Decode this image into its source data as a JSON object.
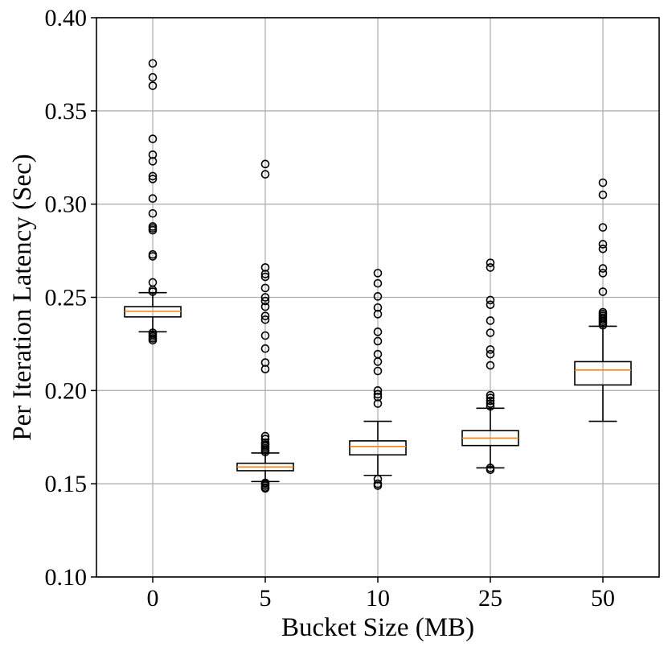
{
  "chart_data": {
    "type": "boxplot",
    "xlabel": "Bucket Size (MB)",
    "ylabel": "Per Iteration Latency (Sec)",
    "ylim": [
      0.1,
      0.4
    ],
    "yticks": [
      "0.10",
      "0.15",
      "0.20",
      "0.25",
      "0.30",
      "0.35",
      "0.40"
    ],
    "categories": [
      "0",
      "5",
      "10",
      "25",
      "50"
    ],
    "grid": true,
    "colors": {
      "box": "#000000",
      "median": "#ff7f0e",
      "grid": "#b0b0b0",
      "outlier": "#000000"
    },
    "boxes": [
      {
        "category": "0",
        "whisker_low": 0.2315,
        "q1": 0.2395,
        "median": 0.2425,
        "q3": 0.245,
        "whisker_high": 0.2525,
        "outliers": [
          0.227,
          0.228,
          0.229,
          0.23,
          0.231,
          0.253,
          0.254,
          0.258,
          0.272,
          0.273,
          0.286,
          0.287,
          0.288,
          0.295,
          0.303,
          0.3135,
          0.315,
          0.323,
          0.3265,
          0.335,
          0.3635,
          0.368,
          0.3755
        ]
      },
      {
        "category": "5",
        "whisker_low": 0.1512,
        "q1": 0.157,
        "median": 0.159,
        "q3": 0.161,
        "whisker_high": 0.1665,
        "outliers": [
          0.1475,
          0.148,
          0.149,
          0.15,
          0.1505,
          0.167,
          0.168,
          0.169,
          0.17,
          0.171,
          0.172,
          0.174,
          0.1755,
          0.2115,
          0.215,
          0.2225,
          0.2295,
          0.238,
          0.24,
          0.245,
          0.248,
          0.25,
          0.255,
          0.261,
          0.2625,
          0.266,
          0.316,
          0.3215
        ]
      },
      {
        "category": "10",
        "whisker_low": 0.1545,
        "q1": 0.1655,
        "median": 0.17,
        "q3": 0.173,
        "whisker_high": 0.1835,
        "outliers": [
          0.149,
          0.15,
          0.1525,
          0.193,
          0.1965,
          0.198,
          0.2,
          0.2105,
          0.2155,
          0.2195,
          0.2265,
          0.2315,
          0.241,
          0.2445,
          0.2505,
          0.2575,
          0.263
        ]
      },
      {
        "category": "25",
        "whisker_low": 0.1585,
        "q1": 0.1705,
        "median": 0.1745,
        "q3": 0.1785,
        "whisker_high": 0.1905,
        "outliers": [
          0.1575,
          0.1585,
          0.1915,
          0.193,
          0.1945,
          0.196,
          0.1975,
          0.2135,
          0.2195,
          0.222,
          0.231,
          0.2375,
          0.246,
          0.2485,
          0.266,
          0.2685
        ]
      },
      {
        "category": "50",
        "whisker_low": 0.1835,
        "q1": 0.203,
        "median": 0.211,
        "q3": 0.2155,
        "whisker_high": 0.2345,
        "outliers": [
          0.235,
          0.236,
          0.237,
          0.238,
          0.239,
          0.24,
          0.241,
          0.242,
          0.253,
          0.263,
          0.2655,
          0.276,
          0.2785,
          0.2875,
          0.305,
          0.3115
        ]
      }
    ]
  }
}
